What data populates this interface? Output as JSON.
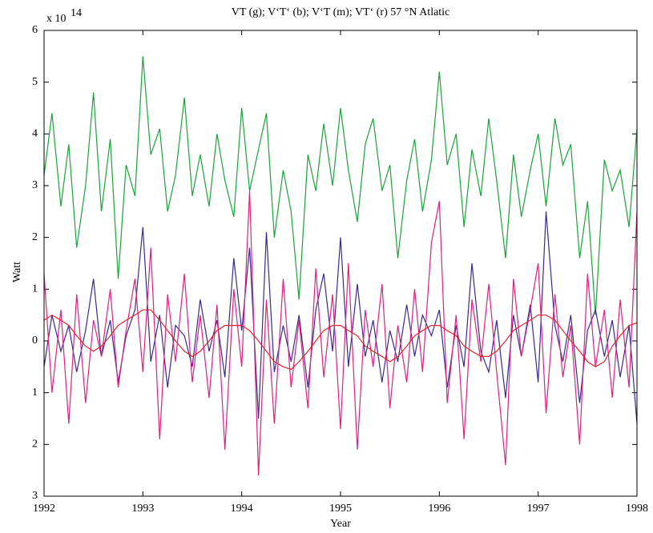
{
  "chart_data": {
    "type": "line",
    "title": "VT (g); V‘T‘ (b); V‘T (m); VT‘ (r) 57 °N Atlatic",
    "x_label": "Year",
    "y_label": "Watt",
    "y_multiplier": {
      "base": "x 10",
      "exponent": "14"
    },
    "x": [
      1992,
      1992.08,
      1992.17,
      1992.25,
      1992.33,
      1992.42,
      1992.5,
      1992.58,
      1992.67,
      1992.75,
      1992.83,
      1992.92,
      1993,
      1993.08,
      1993.17,
      1993.25,
      1993.33,
      1993.42,
      1993.5,
      1993.58,
      1993.67,
      1993.75,
      1993.83,
      1993.92,
      1994,
      1994.08,
      1994.17,
      1994.25,
      1994.33,
      1994.42,
      1994.5,
      1994.58,
      1994.67,
      1994.75,
      1994.83,
      1994.92,
      1995,
      1995.08,
      1995.17,
      1995.25,
      1995.33,
      1995.42,
      1995.5,
      1995.58,
      1995.67,
      1995.75,
      1995.83,
      1995.92,
      1996,
      1996.08,
      1996.17,
      1996.25,
      1996.33,
      1996.42,
      1996.5,
      1996.58,
      1996.67,
      1996.75,
      1996.83,
      1996.92,
      1997,
      1997.08,
      1997.17,
      1997.25,
      1997.33,
      1997.42,
      1997.5,
      1997.58,
      1997.67,
      1997.75,
      1997.83,
      1997.92,
      1998
    ],
    "series": [
      {
        "color": "#1aa33a",
        "values": [
          3.2,
          4.4,
          2.6,
          3.8,
          1.8,
          3.0,
          4.8,
          2.5,
          3.9,
          1.2,
          3.4,
          2.8,
          5.5,
          3.6,
          4.1,
          2.5,
          3.2,
          4.7,
          2.8,
          3.6,
          2.6,
          4.0,
          3.1,
          2.4,
          4.5,
          2.9,
          3.7,
          4.4,
          2.0,
          3.3,
          2.5,
          0.8,
          3.6,
          2.9,
          4.2,
          3.0,
          4.5,
          3.3,
          2.3,
          3.8,
          4.3,
          2.9,
          3.4,
          1.6,
          3.1,
          3.9,
          2.5,
          3.5,
          5.2,
          3.4,
          4.0,
          2.2,
          3.7,
          2.8,
          4.3,
          3.1,
          1.6,
          3.6,
          2.4,
          3.3,
          4.0,
          2.6,
          4.3,
          3.4,
          3.8,
          1.6,
          2.7,
          0.5,
          3.5,
          2.9,
          3.3,
          2.2,
          4.1
        ]
      },
      {
        "color": "#3a2a8c",
        "values": [
          -0.5,
          0.5,
          -0.2,
          0.3,
          -0.6,
          0.2,
          1.2,
          -0.3,
          0.4,
          -0.8,
          0.1,
          0.6,
          2.2,
          -0.4,
          0.5,
          -0.9,
          0.3,
          0.1,
          -0.5,
          0.8,
          -0.2,
          0.4,
          -0.7,
          1.6,
          0.2,
          1.8,
          -1.5,
          2.1,
          -0.6,
          0.3,
          -0.4,
          0.5,
          -0.9,
          0.6,
          1.3,
          -0.2,
          2.0,
          -0.5,
          1.1,
          -0.3,
          0.4,
          -0.8,
          0.2,
          -0.4,
          0.7,
          -0.3,
          0.5,
          0.1,
          0.6,
          -0.9,
          0.3,
          -0.5,
          1.5,
          -0.2,
          -0.6,
          0.4,
          -1.1,
          0.5,
          -0.3,
          0.7,
          -0.8,
          2.5,
          0.3,
          -0.4,
          0.5,
          -1.2,
          0.2,
          0.6,
          -0.3,
          0.4,
          -0.7,
          0.3,
          -1.6
        ]
      },
      {
        "color": "#e0207f",
        "values": [
          1.3,
          -1.0,
          0.6,
          -1.6,
          0.9,
          -1.2,
          0.4,
          -0.3,
          1.0,
          -0.9,
          0.2,
          1.2,
          -0.6,
          1.8,
          -1.9,
          0.9,
          -0.4,
          1.3,
          -0.8,
          0.5,
          -1.1,
          0.7,
          -2.1,
          1.0,
          -0.5,
          2.9,
          -2.6,
          0.8,
          -1.6,
          1.2,
          -0.9,
          0.4,
          -1.3,
          1.4,
          -0.7,
          0.9,
          -1.7,
          1.5,
          -2.1,
          0.6,
          -0.5,
          1.1,
          -1.3,
          0.3,
          -0.8,
          1.0,
          -0.6,
          1.9,
          2.7,
          -1.2,
          0.5,
          -1.9,
          0.8,
          -0.4,
          1.1,
          -0.6,
          -2.4,
          1.2,
          -0.3,
          0.6,
          1.5,
          -1.4,
          0.9,
          -0.7,
          0.3,
          -2.0,
          1.3,
          -0.5,
          0.6,
          -1.1,
          0.8,
          -0.9,
          2.5
        ]
      },
      {
        "color": "#e8222a",
        "values": [
          0.4,
          0.5,
          0.4,
          0.3,
          0.1,
          -0.1,
          -0.2,
          -0.1,
          0.1,
          0.3,
          0.4,
          0.5,
          0.6,
          0.6,
          0.4,
          0.2,
          0.0,
          -0.2,
          -0.3,
          -0.2,
          0.0,
          0.2,
          0.3,
          0.3,
          0.3,
          0.2,
          0.0,
          -0.2,
          -0.4,
          -0.5,
          -0.55,
          -0.4,
          -0.2,
          0.0,
          0.2,
          0.3,
          0.3,
          0.2,
          0.1,
          -0.1,
          -0.2,
          -0.3,
          -0.4,
          -0.3,
          -0.1,
          0.1,
          0.2,
          0.3,
          0.3,
          0.2,
          0.1,
          -0.1,
          -0.2,
          -0.3,
          -0.3,
          -0.2,
          0.0,
          0.2,
          0.3,
          0.4,
          0.5,
          0.5,
          0.4,
          0.2,
          0.0,
          -0.2,
          -0.4,
          -0.5,
          -0.4,
          -0.1,
          0.1,
          0.3,
          0.35
        ]
      }
    ],
    "xlim": [
      1992,
      1998
    ],
    "xticks": [
      1992,
      1993,
      1994,
      1995,
      1996,
      1997,
      1998
    ],
    "ylim": [
      -3,
      6
    ],
    "yticks": [
      {
        "value": -3,
        "label": "3"
      },
      {
        "value": -2,
        "label": "2"
      },
      {
        "value": -1,
        "label": "1"
      },
      0,
      1,
      2,
      3,
      4,
      5,
      6
    ],
    "grid": false
  }
}
